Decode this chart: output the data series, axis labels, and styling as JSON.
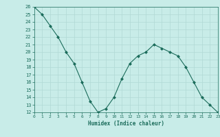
{
  "x": [
    0,
    1,
    2,
    3,
    4,
    5,
    6,
    7,
    8,
    9,
    10,
    11,
    12,
    13,
    14,
    15,
    16,
    17,
    18,
    19,
    20,
    21,
    22,
    23
  ],
  "y": [
    26,
    25,
    23.5,
    22,
    20,
    18.5,
    16,
    13.5,
    12,
    12.5,
    14,
    16.5,
    18.5,
    19.5,
    20,
    21,
    20.5,
    20,
    19.5,
    18,
    16,
    14,
    13,
    12
  ],
  "line_color": "#1a6b5a",
  "marker_color": "#1a6b5a",
  "bg_color": "#c8ece8",
  "grid_color": "#b0d8d4",
  "xlabel": "Humidex (Indice chaleur)",
  "xlabel_color": "#1a6b5a",
  "tick_color": "#1a6b5a",
  "ylim": [
    12,
    26
  ],
  "xlim": [
    0,
    23
  ],
  "yticks": [
    12,
    13,
    14,
    15,
    16,
    17,
    18,
    19,
    20,
    21,
    22,
    23,
    24,
    25,
    26
  ],
  "xticks": [
    0,
    1,
    2,
    3,
    4,
    5,
    6,
    7,
    8,
    9,
    10,
    11,
    12,
    13,
    14,
    15,
    16,
    17,
    18,
    19,
    20,
    21,
    22,
    23
  ]
}
